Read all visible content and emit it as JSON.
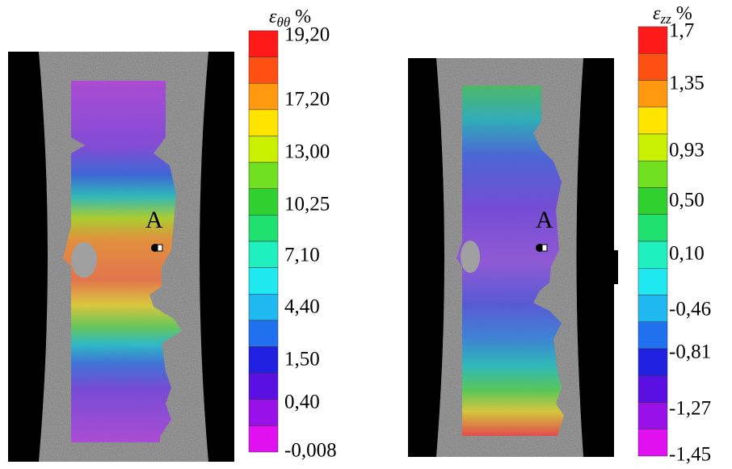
{
  "panels": [
    {
      "title": {
        "symbol": "ε",
        "subscript": "θθ",
        "unit": "%"
      },
      "point_label": "A",
      "colorbar_labels": [
        "19,20",
        "17,20",
        "13,00",
        "10,25",
        "7,10",
        "4,40",
        "1,50",
        "0,40",
        "-0,008"
      ]
    },
    {
      "title": {
        "symbol": "ε",
        "subscript": "zz",
        "unit": "%"
      },
      "point_label": "A",
      "colorbar_labels": [
        "1,7",
        "1,35",
        "0,93",
        "0,50",
        "0,10",
        "-0,46",
        "-0,81",
        "-1,27",
        "-1,45"
      ]
    }
  ]
}
